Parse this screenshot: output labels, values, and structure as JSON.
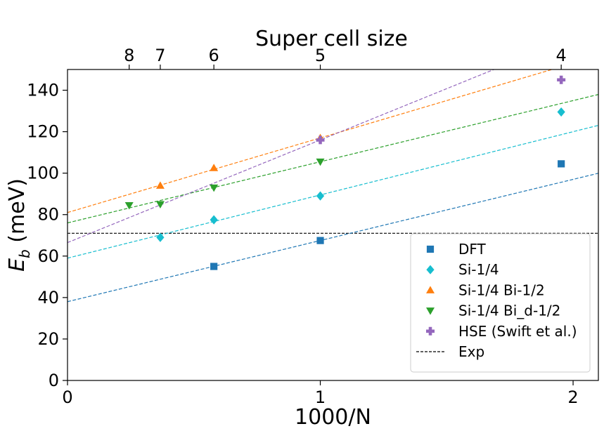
{
  "chart_data": {
    "type": "scatter",
    "title": "",
    "xlabel": "1000/N",
    "ylabel_main": "E",
    "ylabel_sub": "b",
    "ylabel_unit": " (meV)",
    "top_xlabel": "Super cell size",
    "xlim": [
      0,
      2.1
    ],
    "ylim": [
      0,
      150
    ],
    "grid": false,
    "legend_position": "lower-right",
    "x_ticks": [
      0,
      1,
      2
    ],
    "x_tick_labels": [
      "0",
      "1",
      "2"
    ],
    "y_ticks": [
      0,
      20,
      40,
      60,
      80,
      100,
      120,
      140
    ],
    "y_tick_labels": [
      "0",
      "20",
      "40",
      "60",
      "80",
      "100",
      "120",
      "140"
    ],
    "top_ticks": [
      {
        "x": 0.244,
        "label": "8"
      },
      {
        "x": 0.367,
        "label": "7"
      },
      {
        "x": 0.579,
        "label": "6"
      },
      {
        "x": 1.0,
        "label": "5"
      },
      {
        "x": 1.953,
        "label": "4"
      }
    ],
    "series": [
      {
        "name": "DFT",
        "color": "#1f77b4",
        "marker": "square",
        "x": [
          0.579,
          1.0,
          1.953
        ],
        "y": [
          55,
          67.5,
          104.5
        ],
        "fit": {
          "intercept": 38,
          "slope": 29.5
        }
      },
      {
        "name": "Si-1/4",
        "color": "#17becf",
        "marker": "diamond",
        "x": [
          0.367,
          0.579,
          1.0,
          1.953
        ],
        "y": [
          69,
          77.5,
          89,
          129.5
        ],
        "fit": {
          "intercept": 59,
          "slope": 30.5
        }
      },
      {
        "name": "Si-1/4 Bi-1/2",
        "color": "#ff7f0e",
        "marker": "triangle-up",
        "x": [
          0.367,
          0.579,
          1.0
        ],
        "y": [
          94,
          102.5,
          117
        ],
        "fit": {
          "intercept": 81,
          "slope": 36
        }
      },
      {
        "name": "Si-1/4 Bi_d-1/2",
        "color": "#2ca02c",
        "marker": "triangle-down",
        "x": [
          0.244,
          0.367,
          0.579,
          1.0
        ],
        "y": [
          84.5,
          85,
          93,
          105.5
        ],
        "fit": {
          "intercept": 76,
          "slope": 29.5
        }
      },
      {
        "name": "HSE (Swift et al.)",
        "color": "#9467bd",
        "marker": "plus",
        "x": [
          1.0,
          1.953
        ],
        "y": [
          116,
          145
        ],
        "fit": {
          "intercept": 66.5,
          "slope": 49.5
        }
      }
    ],
    "reference_line": {
      "name": "Exp",
      "y": 71,
      "color": "#000000",
      "style": "dashed"
    }
  }
}
